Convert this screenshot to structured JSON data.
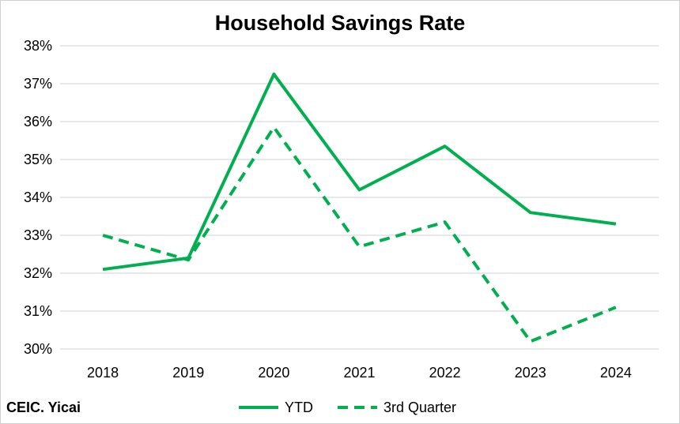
{
  "source_note": "CEIC. Yicai",
  "chart_data": {
    "type": "line",
    "title": "Household Savings Rate",
    "xlabel": "",
    "ylabel": "",
    "categories": [
      "2018",
      "2019",
      "2020",
      "2021",
      "2022",
      "2023",
      "2024"
    ],
    "ylim": [
      30,
      38
    ],
    "yticks": [
      "30%",
      "31%",
      "32%",
      "33%",
      "34%",
      "35%",
      "36%",
      "37%",
      "38%"
    ],
    "grid": true,
    "legend_position": "bottom",
    "series": [
      {
        "name": "YTD",
        "style": "solid",
        "color": "#00b050",
        "values": [
          32.1,
          32.4,
          37.25,
          34.2,
          35.35,
          33.6,
          33.3
        ]
      },
      {
        "name": "3rd Quarter",
        "style": "dashed",
        "color": "#00b050",
        "values": [
          33.0,
          32.35,
          35.85,
          32.7,
          33.35,
          30.2,
          31.1
        ]
      }
    ]
  }
}
